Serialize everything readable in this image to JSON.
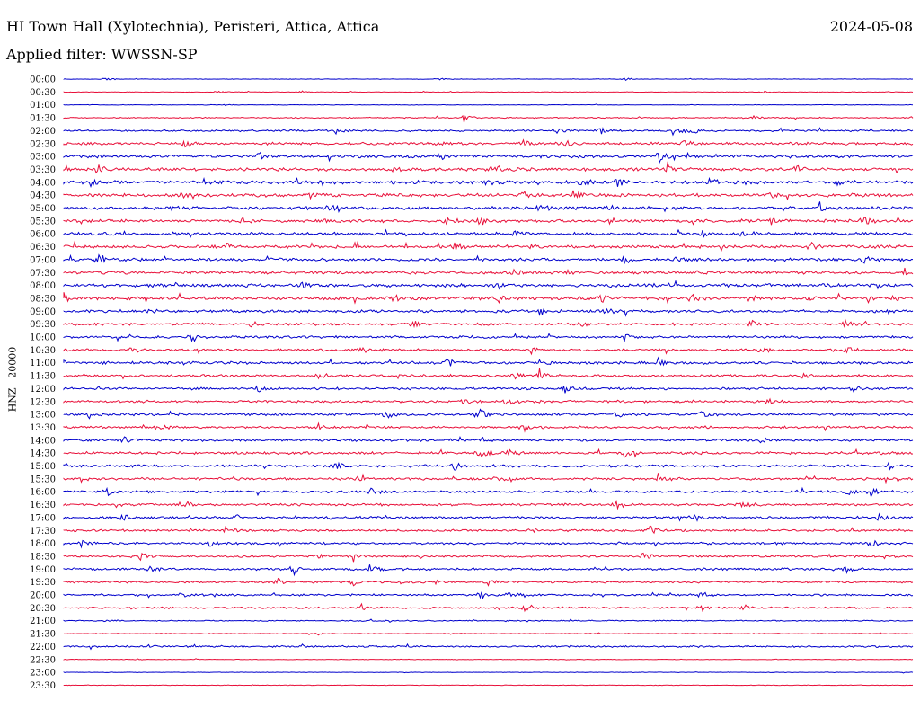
{
  "header": {
    "station": "HI Town Hall (Xylotechnia), Peristeri, Attica, Attica",
    "date": "2024-05-08",
    "filter": "Applied filter: WWSSN-SP"
  },
  "colors": {
    "even_row": "#0000cc",
    "odd_row": "#e8103a"
  },
  "chart_data": {
    "type": "line",
    "title": "HI Town Hall (Xylotechnia), Peristeri, Attica, Attica",
    "ylabel": "HNZ - 20000",
    "xlabel": "",
    "grid": false,
    "rows": [
      "00:00",
      "00:30",
      "01:00",
      "01:30",
      "02:00",
      "02:30",
      "03:00",
      "03:30",
      "04:00",
      "04:30",
      "05:00",
      "05:30",
      "06:00",
      "06:30",
      "07:00",
      "07:30",
      "08:00",
      "08:30",
      "09:00",
      "09:30",
      "10:00",
      "10:30",
      "11:00",
      "11:30",
      "12:00",
      "12:30",
      "13:00",
      "13:30",
      "14:00",
      "14:30",
      "15:00",
      "15:30",
      "16:00",
      "16:30",
      "17:00",
      "17:30",
      "18:00",
      "18:30",
      "19:00",
      "19:30",
      "20:00",
      "20:30",
      "21:00",
      "21:30",
      "22:00",
      "22:30",
      "23:00",
      "23:30"
    ],
    "noise_level": [
      0.3,
      0.3,
      0.3,
      0.6,
      1.0,
      1.4,
      1.6,
      1.6,
      1.8,
      1.8,
      1.7,
      1.6,
      1.6,
      1.6,
      1.6,
      1.6,
      1.8,
      1.8,
      1.5,
      1.3,
      1.3,
      1.3,
      1.4,
      1.3,
      1.3,
      1.3,
      1.3,
      1.3,
      1.3,
      1.4,
      1.4,
      1.3,
      1.3,
      1.3,
      1.3,
      1.2,
      1.2,
      1.2,
      1.2,
      1.1,
      1.1,
      1.0,
      0.6,
      0.4,
      1.0,
      0.3,
      0.3,
      0.3
    ],
    "events": [
      [
        [
          0.05,
          2
        ],
        [
          0.44,
          1.5
        ],
        [
          0.66,
          2
        ]
      ],
      [
        [
          0.18,
          2
        ],
        [
          0.28,
          2
        ],
        [
          0.82,
          2
        ]
      ],
      [
        [
          0.19,
          1
        ]
      ],
      [
        [
          0.47,
          7
        ],
        [
          0.81,
          3
        ]
      ],
      [
        [
          0.32,
          3
        ],
        [
          0.58,
          4
        ],
        [
          0.63,
          5
        ],
        [
          0.72,
          6
        ],
        [
          0.74,
          5
        ]
      ],
      [
        [
          0.14,
          6
        ],
        [
          0.44,
          3
        ],
        [
          0.54,
          4
        ],
        [
          0.59,
          4
        ],
        [
          0.73,
          5
        ]
      ],
      [
        [
          0.23,
          6
        ],
        [
          0.44,
          4
        ],
        [
          0.7,
          8
        ],
        [
          0.73,
          5
        ]
      ],
      [
        [
          0.04,
          8
        ],
        [
          0.39,
          4
        ],
        [
          0.51,
          4
        ],
        [
          0.71,
          7
        ],
        [
          0.86,
          6
        ]
      ],
      [
        [
          0.03,
          5
        ],
        [
          0.5,
          6
        ],
        [
          0.61,
          7
        ],
        [
          0.65,
          5
        ],
        [
          0.76,
          5
        ],
        [
          0.91,
          4
        ]
      ],
      [
        [
          0.14,
          4
        ],
        [
          0.29,
          5
        ],
        [
          0.54,
          5
        ],
        [
          0.6,
          5
        ],
        [
          0.83,
          5
        ]
      ],
      [
        [
          0.13,
          4
        ],
        [
          0.31,
          6
        ],
        [
          0.56,
          5
        ],
        [
          0.64,
          5
        ],
        [
          0.89,
          6
        ]
      ],
      [
        [
          0.21,
          5
        ],
        [
          0.45,
          5
        ],
        [
          0.49,
          6
        ],
        [
          0.83,
          6
        ],
        [
          0.94,
          6
        ]
      ],
      [
        [
          0.53,
          3
        ],
        [
          0.75,
          5
        ],
        [
          0.8,
          5
        ]
      ],
      [
        [
          0.19,
          5
        ],
        [
          0.46,
          5
        ],
        [
          0.55,
          4
        ],
        [
          0.88,
          6
        ]
      ],
      [
        [
          0.04,
          6
        ],
        [
          0.66,
          5
        ],
        [
          0.72,
          4
        ],
        [
          0.94,
          6
        ]
      ],
      [
        [
          0.53,
          5
        ],
        [
          0.59,
          4
        ],
        [
          0.99,
          5
        ]
      ],
      [
        [
          0.28,
          5
        ],
        [
          0.51,
          4
        ]
      ],
      [
        [
          0.0,
          6
        ],
        [
          0.39,
          5
        ],
        [
          0.51,
          6
        ],
        [
          0.63,
          6
        ],
        [
          0.74,
          5
        ],
        [
          0.81,
          6
        ]
      ],
      [
        [
          0.1,
          4
        ],
        [
          0.56,
          5
        ],
        [
          0.64,
          5
        ],
        [
          0.97,
          4
        ]
      ],
      [
        [
          0.22,
          5
        ],
        [
          0.41,
          5
        ],
        [
          0.61,
          5
        ],
        [
          0.81,
          5
        ],
        [
          0.92,
          5
        ]
      ],
      [
        [
          0.15,
          7
        ],
        [
          0.57,
          5
        ],
        [
          0.66,
          5
        ]
      ],
      [
        [
          0.08,
          4
        ],
        [
          0.35,
          4
        ],
        [
          0.55,
          4
        ],
        [
          0.82,
          6
        ],
        [
          0.92,
          5
        ]
      ],
      [
        [
          0.0,
          4
        ],
        [
          0.45,
          7
        ],
        [
          0.56,
          6
        ],
        [
          0.7,
          5
        ]
      ],
      [
        [
          0.3,
          5
        ],
        [
          0.53,
          6
        ],
        [
          0.56,
          5
        ],
        [
          0.87,
          5
        ]
      ],
      [
        [
          0.23,
          7
        ],
        [
          0.59,
          6
        ],
        [
          0.93,
          5
        ]
      ],
      [
        [
          0.47,
          4
        ],
        [
          0.52,
          5
        ],
        [
          0.83,
          4
        ]
      ],
      [
        [
          0.03,
          5
        ],
        [
          0.38,
          5
        ],
        [
          0.49,
          5
        ],
        [
          0.65,
          5
        ],
        [
          0.75,
          4
        ]
      ],
      [
        [
          0.11,
          5
        ],
        [
          0.3,
          5
        ],
        [
          0.54,
          5
        ]
      ],
      [
        [
          0.07,
          4
        ],
        [
          0.49,
          4
        ],
        [
          0.82,
          5
        ]
      ],
      [
        [
          0.49,
          6
        ],
        [
          0.52,
          6
        ],
        [
          0.66,
          5
        ]
      ],
      [
        [
          0.32,
          5
        ],
        [
          0.46,
          5
        ],
        [
          0.97,
          5
        ]
      ],
      [
        [
          0.35,
          5
        ],
        [
          0.51,
          5
        ],
        [
          0.7,
          6
        ]
      ],
      [
        [
          0.05,
          4
        ],
        [
          0.36,
          5
        ],
        [
          0.92,
          7
        ],
        [
          0.95,
          5
        ]
      ],
      [
        [
          0.06,
          4
        ],
        [
          0.14,
          7
        ],
        [
          0.65,
          5
        ],
        [
          0.8,
          4
        ]
      ],
      [
        [
          0.07,
          6
        ],
        [
          0.2,
          4
        ],
        [
          0.74,
          6
        ],
        [
          0.96,
          5
        ]
      ],
      [
        [
          0.19,
          4
        ],
        [
          0.55,
          5
        ],
        [
          0.69,
          6
        ]
      ],
      [
        [
          0.02,
          4
        ],
        [
          0.17,
          6
        ],
        [
          0.95,
          5
        ]
      ],
      [
        [
          0.09,
          5
        ],
        [
          0.3,
          4
        ],
        [
          0.34,
          5
        ],
        [
          0.68,
          6
        ]
      ],
      [
        [
          0.1,
          4
        ],
        [
          0.27,
          7
        ],
        [
          0.36,
          5
        ],
        [
          0.92,
          5
        ]
      ],
      [
        [
          0.25,
          5
        ],
        [
          0.34,
          5
        ],
        [
          0.44,
          4
        ],
        [
          0.5,
          4
        ]
      ],
      [
        [
          0.14,
          4
        ],
        [
          0.49,
          5
        ],
        [
          0.52,
          6
        ],
        [
          0.75,
          5
        ]
      ],
      [
        [
          0.35,
          4
        ],
        [
          0.54,
          6
        ],
        [
          0.75,
          4
        ],
        [
          0.8,
          4
        ]
      ],
      [
        [
          0.05,
          2
        ]
      ],
      [
        [
          0.3,
          1.5
        ]
      ],
      [
        [
          0.1,
          1
        ]
      ],
      [],
      [],
      []
    ]
  }
}
